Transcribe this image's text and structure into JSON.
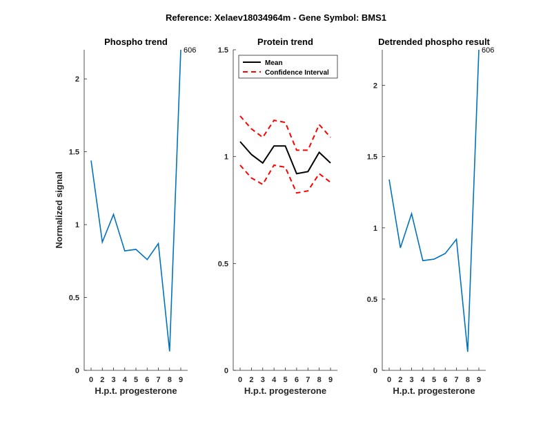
{
  "figure_title": "Reference:  Xelaev18034964m - Gene Symbol:  BMS1",
  "colors": {
    "series": "#0072BD",
    "mean": "#000000",
    "ci": "#FF0000",
    "axis": "#262626"
  },
  "chart_data": [
    {
      "type": "line",
      "title": "Phospho trend",
      "xlabel": "H.p.t. progesterone",
      "ylabel": "Normalized signal",
      "x": [
        "0",
        "2",
        "3",
        "4",
        "5",
        "6",
        "7",
        "8",
        "9"
      ],
      "yticks": [
        "0",
        "0.5",
        "1",
        "1.5",
        "2"
      ],
      "ylim": [
        0,
        2.2
      ],
      "series": [
        {
          "name": "Phospho",
          "values": [
            1.44,
            0.88,
            1.07,
            0.82,
            0.83,
            0.76,
            0.87,
            0.13,
            2.2
          ]
        }
      ],
      "annotation": {
        "text": "606",
        "at_index": 8
      }
    },
    {
      "type": "line",
      "title": "Protein trend",
      "xlabel": "H.p.t. progesterone",
      "ylabel": "",
      "x": [
        "0",
        "2",
        "3",
        "4",
        "5",
        "6",
        "7",
        "8",
        "9"
      ],
      "yticks": [
        "0",
        "0.5",
        "1",
        "1.5"
      ],
      "ylim": [
        0,
        1.5
      ],
      "series": [
        {
          "name": "Mean",
          "values": [
            1.07,
            1.01,
            0.97,
            1.05,
            1.05,
            0.92,
            0.93,
            1.02,
            0.97
          ]
        },
        {
          "name": "CI upper",
          "values": [
            1.19,
            1.13,
            1.09,
            1.17,
            1.16,
            1.03,
            1.03,
            1.15,
            1.09
          ]
        },
        {
          "name": "CI lower",
          "values": [
            0.96,
            0.9,
            0.87,
            0.96,
            0.95,
            0.83,
            0.84,
            0.92,
            0.88
          ]
        }
      ],
      "legend": [
        {
          "label": "Mean",
          "style": "solid"
        },
        {
          "label": "Confidence Interval",
          "style": "dashed"
        }
      ]
    },
    {
      "type": "line",
      "title": "Detrended phospho result",
      "xlabel": "H.p.t. progesterone",
      "ylabel": "",
      "x": [
        "0",
        "2",
        "3",
        "4",
        "5",
        "6",
        "7",
        "8",
        "9"
      ],
      "yticks": [
        "0",
        "0.5",
        "1",
        "1.5",
        "2"
      ],
      "ylim": [
        0,
        2.25
      ],
      "series": [
        {
          "name": "Detrended",
          "values": [
            1.34,
            0.86,
            1.1,
            0.77,
            0.78,
            0.82,
            0.92,
            0.13,
            2.25
          ]
        }
      ],
      "annotation": {
        "text": "606",
        "at_index": 8
      }
    }
  ]
}
